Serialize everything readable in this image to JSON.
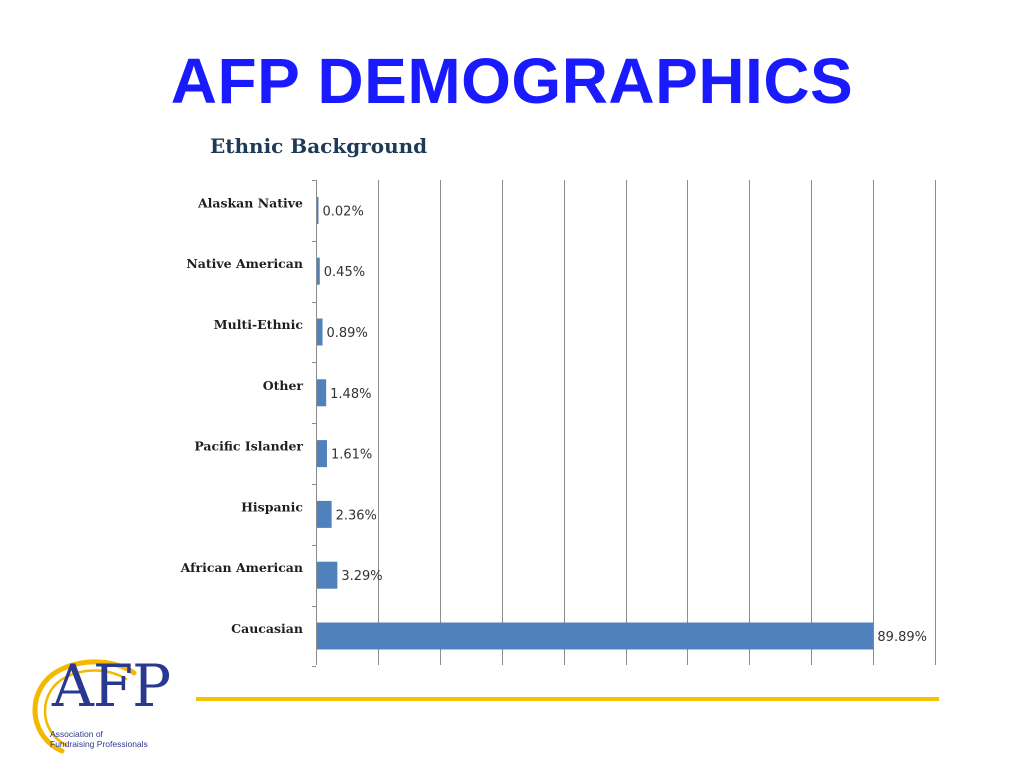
{
  "slide": {
    "title": "AFP DEMOGRAPHICS",
    "title_color": "#1a1aff",
    "divider_color": "#f5c400"
  },
  "logo": {
    "wordmark": "AFP",
    "tagline_line1": "Association of",
    "tagline_line2": "Fundraising Professionals",
    "arc_color": "#f5b800",
    "text_color": "#2a3990"
  },
  "chart_data": {
    "type": "bar",
    "orientation": "horizontal",
    "title": "Ethnic Background",
    "categories": [
      "Alaskan Native",
      "Native American",
      "Multi-Ethnic",
      "Other",
      "Pacific Islander",
      "Hispanic",
      "African American",
      "Caucasian"
    ],
    "values": [
      0.02,
      0.45,
      0.89,
      1.48,
      1.61,
      2.36,
      3.29,
      89.89
    ],
    "value_labels": [
      "0.02%",
      "0.45%",
      "0.89%",
      "1.48%",
      "1.61%",
      "2.36%",
      "3.29%",
      "89.89%"
    ],
    "xlim": [
      0,
      100
    ],
    "x_gridline_step": 10,
    "grid": true,
    "x_tick_labels_shown": false,
    "legend": "none",
    "bar_color": "#4f81bd",
    "gridline_color": "#8c8c8c"
  }
}
